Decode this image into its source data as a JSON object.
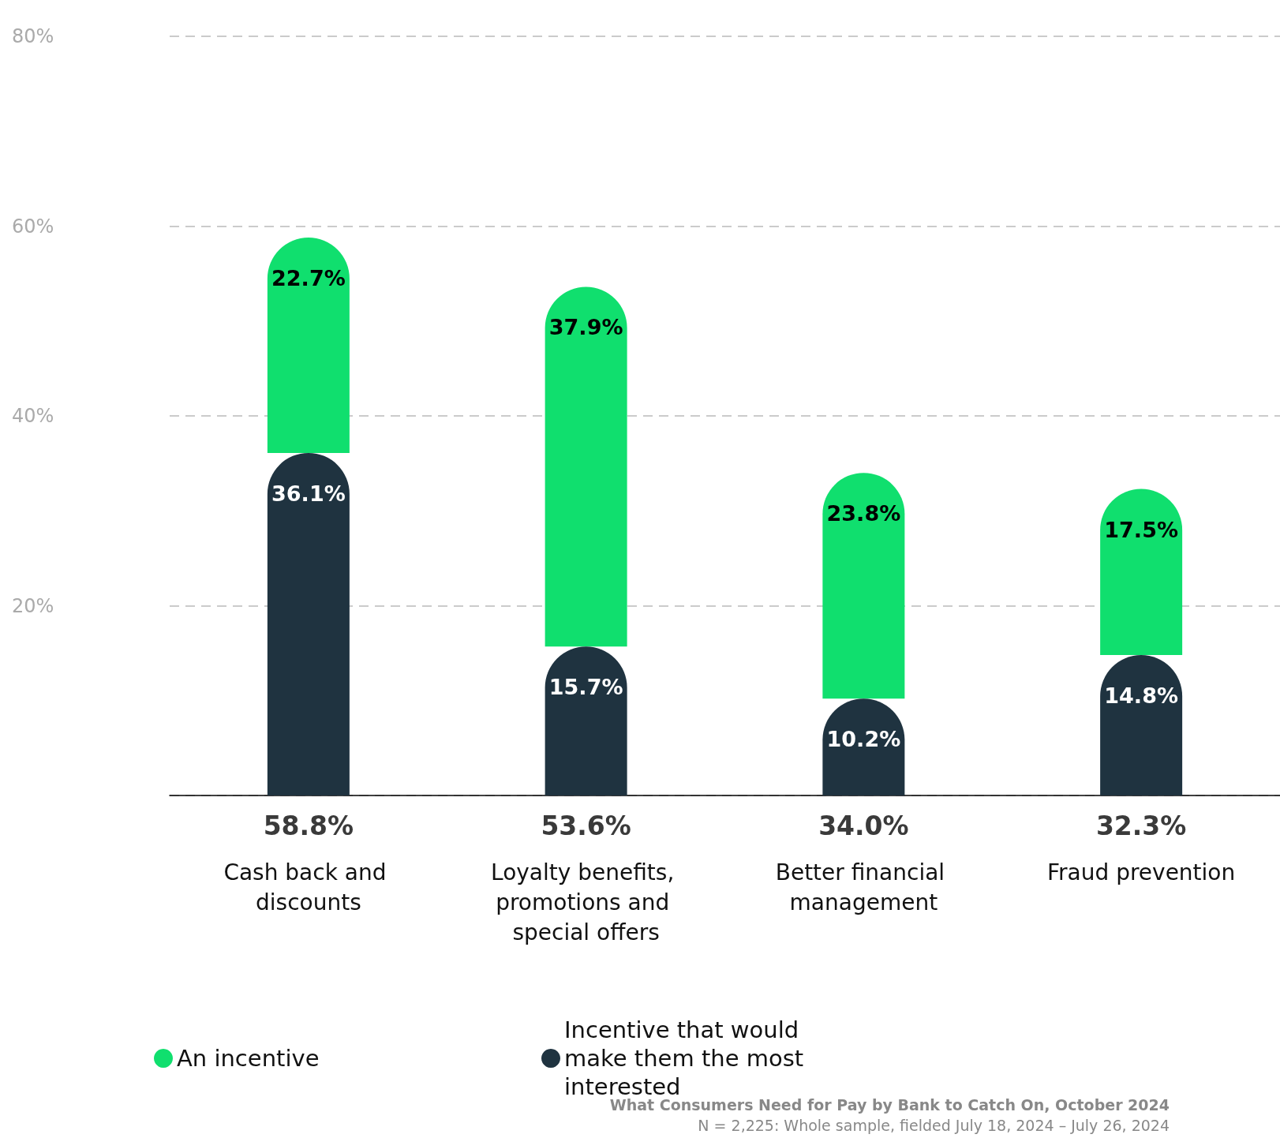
{
  "chart_data": {
    "type": "bar",
    "stacked": true,
    "categories": [
      "Cash back and discounts",
      "Loyalty benefits, promotions and special offers",
      "Better financial management",
      "Fraud prevention"
    ],
    "series": [
      {
        "name": "Incentive that would make them the most interested",
        "color": "#1f3340",
        "values": [
          36.1,
          15.7,
          10.2,
          14.8
        ],
        "value_labels": [
          "36.1%",
          "15.7%",
          "10.2%",
          "14.8%"
        ]
      },
      {
        "name": "An incentive",
        "color": "#10df6e",
        "values": [
          22.7,
          37.9,
          23.8,
          17.5
        ],
        "value_labels": [
          "22.7%",
          "37.9%",
          "23.8%",
          "17.5%"
        ]
      }
    ],
    "totals": [
      "58.8%",
      "53.6%",
      "34.0%",
      "32.3%"
    ],
    "ylim": [
      0,
      80
    ],
    "yticks": [
      {
        "value": 20,
        "label": "20%"
      },
      {
        "value": 40,
        "label": "40%"
      },
      {
        "value": 60,
        "label": "60%"
      },
      {
        "value": 80,
        "label": "80%"
      }
    ],
    "grid": "y",
    "legend": "bottom left",
    "tick_labels": "xy",
    "annotations": [
      "What Consumers Need for Pay by Bank to Catch On, October 2024",
      "N = 2,225: Whole sample, fielded July 18, 2024 – July 26, 2024"
    ]
  }
}
